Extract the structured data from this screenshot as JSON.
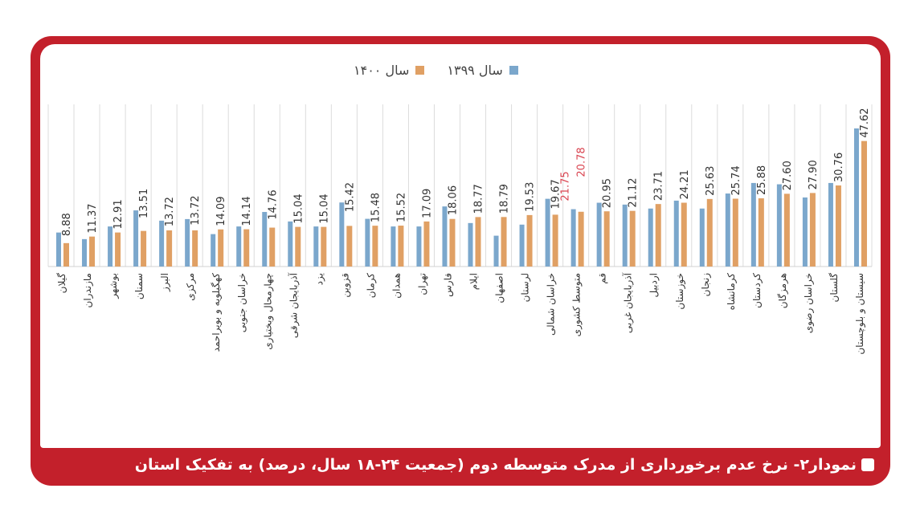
{
  "chart_data": {
    "type": "bar",
    "title": "",
    "xlabel": "",
    "ylabel": "",
    "ylim": [
      0,
      60
    ],
    "grid": "vertical category separators",
    "legend_placement": "top-center",
    "categories": [
      "گیلان",
      "مازندران",
      "بوشهر",
      "سمنان",
      "البرز",
      "مرکزی",
      "کهگیلویه و بویراحمد",
      "خراسان جنوبی",
      "چهارمحال وبختیاری",
      "آذربایجان شرقی",
      "یزد",
      "قزوین",
      "کرمان",
      "همدان",
      "تهران",
      "فارس",
      "ایلام",
      "اصفهان",
      "لرستان",
      "خراسان شمالی",
      "متوسط کشوری",
      "قم",
      "آذربایجان غربی",
      "اردبیل",
      "خوزستان",
      "زنجان",
      "کرمانشاه",
      "کردستان",
      "هرمزگان",
      "خراسان رضوی",
      "گلستان",
      "سیستان و بلوچستان"
    ],
    "series": [
      {
        "name": "سال ۱۳۹۹",
        "color": "#7ba7cc",
        "values": [
          12.9,
          10.4,
          15.2,
          21.3,
          17.4,
          18.0,
          12.3,
          15.2,
          20.7,
          17.1,
          15.2,
          24.3,
          18.1,
          15.2,
          15.2,
          22.8,
          16.5,
          11.7,
          15.9,
          25.7,
          21.75,
          24.2,
          23.5,
          22.0,
          25.0,
          22.0,
          27.7,
          31.7,
          31.2,
          26.2,
          31.7,
          52.4
        ]
      },
      {
        "name": "سال ۱۴۰۰",
        "color": "#e0a064",
        "values": [
          8.88,
          11.37,
          12.91,
          13.51,
          13.72,
          13.72,
          14.09,
          14.14,
          14.76,
          15.04,
          15.04,
          15.42,
          15.48,
          15.52,
          17.09,
          18.06,
          18.77,
          18.79,
          19.53,
          19.67,
          20.78,
          20.95,
          21.12,
          23.71,
          24.21,
          25.63,
          25.74,
          25.88,
          27.6,
          27.9,
          30.76,
          47.62
        ]
      }
    ],
    "data_labels": [
      "8.88",
      "11.37",
      "12.91",
      "13.51",
      "13.72",
      "13.72",
      "14.09",
      "14.14",
      "14.76",
      "15.04",
      "15.04",
      "15.42",
      "15.48",
      "15.52",
      "17.09",
      "18.06",
      "18.77",
      "18.79",
      "19.53",
      "19.67",
      "20.78",
      "20.95",
      "21.12",
      "23.71",
      "24.21",
      "25.63",
      "25.74",
      "25.88",
      "27.60",
      "27.90",
      "30.76",
      "47.62"
    ],
    "highlight": {
      "category": "متوسط کشوری",
      "labels": [
        "21.75",
        "20.78"
      ],
      "color": "#d9434f"
    }
  },
  "legend": [
    {
      "label": "سال ۱۳۹۹",
      "color": "#7ba7cc"
    },
    {
      "label": "سال ۱۴۰۰",
      "color": "#e0a064"
    }
  ],
  "caption": "نمودار۲- نرخ عدم برخورداری از مدرک متوسطه دوم (جمعیت ۲۴-۱۸ سال، درصد) به تفکیک استان",
  "colors": {
    "frame": "#c3202b"
  }
}
